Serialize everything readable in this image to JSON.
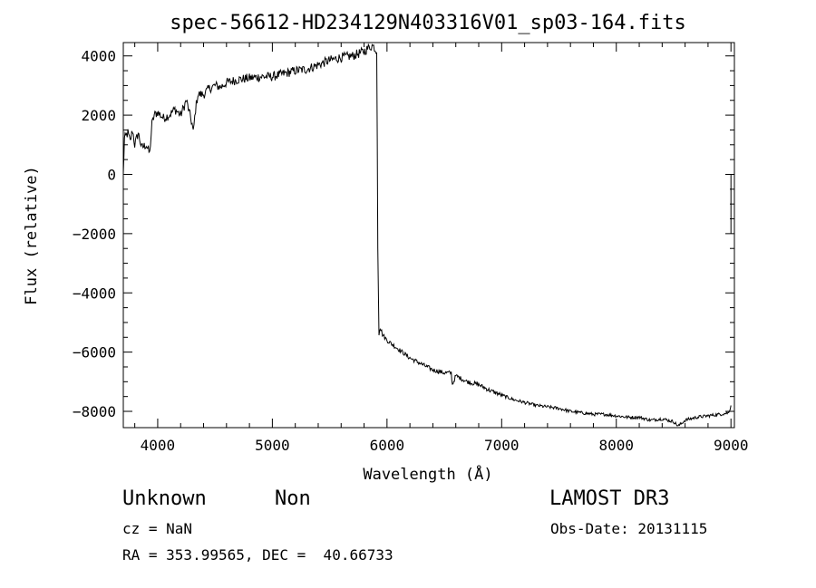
{
  "chart_data": {
    "type": "line",
    "title": "spec-56612-HD234129N403316V01_sp03-164.fits",
    "xlabel": "Wavelength (Å)",
    "ylabel": "Flux (relative)",
    "xlim": [
      3700,
      9030
    ],
    "ylim": [
      -8550,
      4450
    ],
    "xticks": [
      4000,
      5000,
      6000,
      7000,
      8000,
      9000
    ],
    "yticks": [
      -8000,
      -6000,
      -4000,
      -2000,
      0,
      2000,
      4000
    ],
    "xtick_labels": [
      "4000",
      "5000",
      "6000",
      "7000",
      "8000",
      "9000"
    ],
    "ytick_labels": [
      "−8000",
      "−6000",
      "−4000",
      "−2000",
      "0",
      "2000",
      "4000"
    ],
    "series": [
      {
        "x": [
          3700,
          3710,
          3740,
          3760,
          3780,
          3800,
          3830,
          3860,
          3900,
          3930,
          3950,
          3970,
          4000,
          4050,
          4100,
          4150,
          4200,
          4250,
          4300,
          4310,
          4330,
          4350,
          4400,
          4450,
          4500,
          4550,
          4600,
          4700,
          4800,
          4900,
          5000,
          5100,
          5200,
          5300,
          5400,
          5500,
          5600,
          5700,
          5800,
          5850,
          5870,
          5890,
          5910,
          5915,
          5920,
          5930,
          5940,
          5960,
          5980,
          6000,
          6100,
          6200,
          6300,
          6400,
          6500,
          6560,
          6570,
          6600,
          6700,
          6800,
          6900,
          7000,
          7100,
          7200,
          7300,
          7400,
          7500,
          7600,
          7700,
          7800,
          7900,
          8000,
          8100,
          8200,
          8300,
          8400,
          8500,
          8540,
          8600,
          8700,
          8800,
          8900,
          8980,
          9000
        ],
        "y": [
          0,
          1200,
          1400,
          1100,
          1500,
          1000,
          1400,
          900,
          1000,
          700,
          1700,
          2000,
          2100,
          1900,
          2000,
          2200,
          2000,
          2500,
          1700,
          1400,
          2200,
          2700,
          2700,
          2900,
          3000,
          2950,
          3100,
          3200,
          3250,
          3300,
          3300,
          3400,
          3500,
          3550,
          3700,
          3850,
          3950,
          4000,
          4150,
          4300,
          4350,
          4300,
          4100,
          1200,
          -2500,
          -5300,
          -5100,
          -5400,
          -5500,
          -5600,
          -5900,
          -6200,
          -6400,
          -6600,
          -6700,
          -6700,
          -7100,
          -6800,
          -7000,
          -7100,
          -7300,
          -7450,
          -7600,
          -7700,
          -7800,
          -7850,
          -7900,
          -8000,
          -8050,
          -8100,
          -8100,
          -8150,
          -8200,
          -8200,
          -8300,
          -8250,
          -8350,
          -8500,
          -8300,
          -8200,
          -8150,
          -8100,
          -8050,
          -7800
        ]
      }
    ]
  },
  "footer": {
    "object_class": "Unknown",
    "object_subclass": "Non",
    "survey": "LAMOST DR3",
    "redshift": "cz = NaN",
    "obs_date": "Obs-Date: 20131115",
    "coords": "RA = 353.99565, DEC =  40.66733"
  }
}
